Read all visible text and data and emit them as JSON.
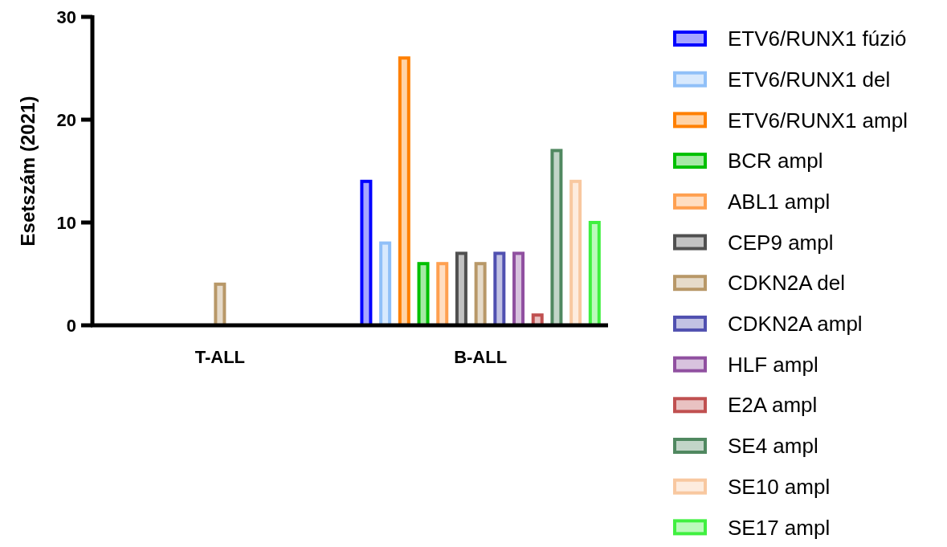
{
  "chart_data": {
    "type": "bar",
    "ylabel": "Esetszám (2021)",
    "categories": [
      "T-ALL",
      "B-ALL"
    ],
    "ylim": [
      0,
      30
    ],
    "yticks": [
      0,
      10,
      20,
      30
    ],
    "grid": false,
    "legend": "right",
    "series": [
      {
        "name": "ETV6/RUNX1 fúzió",
        "color": "#0000ff",
        "values": [
          0,
          14
        ]
      },
      {
        "name": "ETV6/RUNX1 del",
        "color": "#90c0f8",
        "values": [
          0,
          8
        ]
      },
      {
        "name": "ETV6/RUNX1 ampl",
        "color": "#ff8000",
        "values": [
          0,
          26
        ]
      },
      {
        "name": "BCR ampl",
        "color": "#00c000",
        "values": [
          0,
          6
        ]
      },
      {
        "name": "ABL1 ampl",
        "color": "#ffa050",
        "values": [
          0,
          6
        ]
      },
      {
        "name": "CEP9 ampl",
        "color": "#505050",
        "values": [
          0,
          7
        ]
      },
      {
        "name": "CDKN2A del",
        "color": "#b89868",
        "values": [
          4,
          6
        ]
      },
      {
        "name": "CDKN2A ampl",
        "color": "#5050b0",
        "values": [
          0,
          7
        ]
      },
      {
        "name": "HLF ampl",
        "color": "#9050a0",
        "values": [
          0,
          7
        ]
      },
      {
        "name": "E2A ampl",
        "color": "#c05050",
        "values": [
          0,
          1
        ]
      },
      {
        "name": "SE4 ampl",
        "color": "#508860",
        "values": [
          0,
          17
        ]
      },
      {
        "name": "SE10 ampl",
        "color": "#f8c8a0",
        "values": [
          0,
          14
        ]
      },
      {
        "name": "SE17 ampl",
        "color": "#40f040",
        "values": [
          0,
          10
        ]
      }
    ]
  }
}
